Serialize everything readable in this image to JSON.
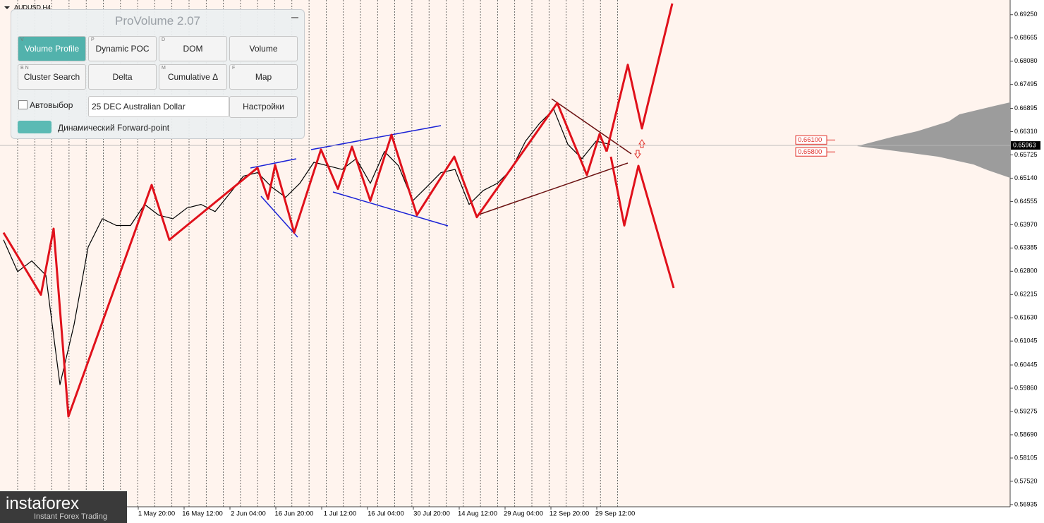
{
  "chart_data": {
    "type": "line",
    "symbol": "AUDUSD,H4",
    "ylim": [
      0.5688,
      0.6953
    ],
    "yticks": [
      {
        "value": 0.6925,
        "label": "0.69250"
      },
      {
        "value": 0.68665,
        "label": "0.68665"
      },
      {
        "value": 0.6808,
        "label": "0.68080"
      },
      {
        "value": 0.67495,
        "label": "0.67495"
      },
      {
        "value": 0.66895,
        "label": "0.66895"
      },
      {
        "value": 0.6631,
        "label": "0.66310"
      },
      {
        "value": 0.65725,
        "label": "0.65725"
      },
      {
        "value": 0.6514,
        "label": "0.65140"
      },
      {
        "value": 0.64555,
        "label": "0.64555"
      },
      {
        "value": 0.6397,
        "label": "0.63970"
      },
      {
        "value": 0.63385,
        "label": "0.63385"
      },
      {
        "value": 0.628,
        "label": "0.62800"
      },
      {
        "value": 0.62215,
        "label": "0.62215"
      },
      {
        "value": 0.6163,
        "label": "0.61630"
      },
      {
        "value": 0.61045,
        "label": "0.61045"
      },
      {
        "value": 0.60445,
        "label": "0.60445"
      },
      {
        "value": 0.5986,
        "label": "0.59860"
      },
      {
        "value": 0.59275,
        "label": "0.59275"
      },
      {
        "value": 0.5869,
        "label": "0.58690"
      },
      {
        "value": 0.58105,
        "label": "0.58105"
      },
      {
        "value": 0.5752,
        "label": "0.57520"
      },
      {
        "value": 0.56935,
        "label": "0.56935"
      }
    ],
    "x_labels": [
      "1 May 20:00",
      "16 May 12:00",
      "2 Jun 04:00",
      "16 Jun 20:00",
      "1 Jul 12:00",
      "16 Jul 04:00",
      "30 Jul 20:00",
      "14 Aug 12:00",
      "29 Aug 04:00",
      "12 Sep 20:00",
      "29 Sep 12:00"
    ],
    "current_price": 0.65963,
    "levels": {
      "values": [
        0.661,
        0.658
      ],
      "value_labels": [
        "0.66100",
        "0.65800"
      ],
      "color": "#e0302a"
    },
    "series": [
      {
        "color": "#000000",
        "width": 1.2,
        "x": [
          0,
          1,
          2,
          3,
          4,
          5,
          6,
          7,
          8,
          9,
          10,
          11,
          12,
          13,
          14,
          15,
          16,
          17,
          18,
          19,
          20,
          21,
          22,
          23,
          24,
          25,
          26,
          27,
          28,
          29,
          30,
          31,
          32,
          33,
          34,
          35,
          36,
          37,
          38,
          39,
          40,
          41,
          42,
          43
        ],
        "values": [
          0.6359,
          0.6279,
          0.6306,
          0.627,
          0.5995,
          0.6146,
          0.6341,
          0.6412,
          0.6395,
          0.6395,
          0.6448,
          0.6421,
          0.6412,
          0.6439,
          0.6448,
          0.643,
          0.6474,
          0.6519,
          0.6528,
          0.6492,
          0.6466,
          0.6501,
          0.6554,
          0.6545,
          0.6536,
          0.6563,
          0.6501,
          0.6581,
          0.6545,
          0.6457,
          0.6492,
          0.6528,
          0.6536,
          0.6448,
          0.6483,
          0.6501,
          0.6536,
          0.6607,
          0.6652,
          0.6687,
          0.6599,
          0.6563,
          0.6607,
          0.6599
        ]
      },
      {
        "color": "#e0111b",
        "width": 3,
        "x": [
          0,
          2.65,
          3.55,
          4.6,
          10.5,
          11.75,
          18,
          18.75,
          19.25,
          20.6,
          22.5,
          23.7,
          24.7,
          26,
          27.5,
          29.3,
          31.95,
          33.55,
          39.25,
          41.35,
          42.25,
          42.75
        ],
        "values": [
          0.6377,
          0.6221,
          0.6387,
          0.5915,
          0.6497,
          0.6359,
          0.654,
          0.6462,
          0.6547,
          0.6377,
          0.6586,
          0.6487,
          0.6593,
          0.6457,
          0.6623,
          0.6421,
          0.6568,
          0.6416,
          0.6703,
          0.6522,
          0.6625,
          0.6581
        ]
      },
      {
        "color": "#e0111b",
        "width": 3,
        "x": [
          42.75,
          44.25,
          45.25,
          47.4
        ],
        "values": [
          0.6581,
          0.6799,
          0.6639,
          0.6953
        ]
      },
      {
        "color": "#e0111b",
        "width": 3,
        "x": [
          43.05,
          44,
          45,
          47.5
        ],
        "values": [
          0.6568,
          0.6395,
          0.6545,
          0.6238
        ]
      }
    ]
  },
  "panel": {
    "title": "ProVolume 2.07",
    "buttons": [
      {
        "key": "V",
        "label": "Volume Profile"
      },
      {
        "key": "P",
        "label": "Dynamic POC"
      },
      {
        "key": "D",
        "label": "DOM"
      },
      {
        "key": "",
        "label": "Volume"
      },
      {
        "key": "B N",
        "label": "Cluster Search"
      },
      {
        "key": "",
        "label": "Delta"
      },
      {
        "key": "M",
        "label": "Cumulative Δ"
      },
      {
        "key": "F",
        "label": "Map"
      }
    ],
    "autoselect": "Автовыбор",
    "instrument": "25 DEC Australian Dollar",
    "settings": "Настройки",
    "forward_point": "Динамический Forward-point"
  },
  "logo": {
    "name": "instaforex",
    "tagline": "Instant Forex Trading"
  }
}
